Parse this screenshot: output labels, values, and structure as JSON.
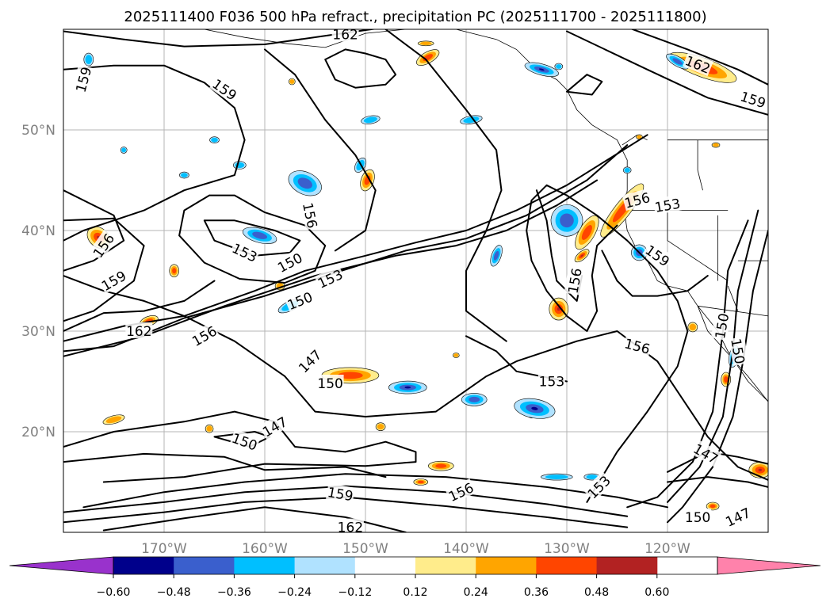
{
  "chart_data": {
    "type": "contour map",
    "title": "2025111400 F036 500 hPa refract., precipitation PC (2025111700 - 2025111800)",
    "map": {
      "lon_range": [
        -180,
        -110
      ],
      "lat_range": [
        10,
        60
      ],
      "lon_ticks": [
        -170,
        -160,
        -150,
        -140,
        -130,
        -120
      ],
      "lon_tick_labels": [
        "170°W",
        "160°W",
        "150°W",
        "140°W",
        "130°W",
        "120°W"
      ],
      "lat_ticks": [
        20,
        30,
        40,
        50
      ],
      "lat_tick_labels": [
        "20°N",
        "30°N",
        "40°N",
        "50°N"
      ],
      "grid": true
    },
    "colorbar": {
      "orientation": "horizontal",
      "extend": "both",
      "levels": [
        -0.72,
        -0.6,
        -0.48,
        -0.36,
        -0.24,
        -0.12,
        0.12,
        0.24,
        0.36,
        0.48,
        0.6,
        0.72
      ],
      "tick_values": [
        -0.6,
        -0.48,
        -0.36,
        -0.24,
        -0.12,
        0.12,
        0.24,
        0.36,
        0.48,
        0.6
      ],
      "tick_labels": [
        "−0.60",
        "−0.48",
        "−0.36",
        "−0.24",
        "−0.12",
        "0.12",
        "0.24",
        "0.36",
        "0.48",
        "0.60"
      ],
      "colors": [
        "#9932cc",
        "#00008b",
        "#3a5fcd",
        "#00bfff",
        "#b0e2ff",
        "#ffffff",
        "#ffec8b",
        "#ffa500",
        "#ff4500",
        "#b22222",
        "#ff82ab"
      ]
    },
    "contours": {
      "line_color": "#000000",
      "labels": [
        {
          "value": "162",
          "lon": -152.0,
          "lat": 59.5,
          "rot": 0
        },
        {
          "value": "162",
          "lon": -117.0,
          "lat": 56.5,
          "rot": 22
        },
        {
          "value": "159",
          "lon": -111.5,
          "lat": 53.0,
          "rot": 18
        },
        {
          "value": "159",
          "lon": -178.0,
          "lat": 55.0,
          "rot": -75
        },
        {
          "value": "159",
          "lon": -164.0,
          "lat": 54.0,
          "rot": 35
        },
        {
          "value": "156",
          "lon": -155.5,
          "lat": 41.5,
          "rot": 78
        },
        {
          "value": "156",
          "lon": -123.0,
          "lat": 43.0,
          "rot": -15
        },
        {
          "value": "153",
          "lon": -120.0,
          "lat": 42.5,
          "rot": -10
        },
        {
          "value": "156",
          "lon": -176.0,
          "lat": 38.5,
          "rot": -55
        },
        {
          "value": "153",
          "lon": -162.0,
          "lat": 37.8,
          "rot": 25
        },
        {
          "value": "150",
          "lon": -157.5,
          "lat": 36.8,
          "rot": -28
        },
        {
          "value": "153",
          "lon": -153.5,
          "lat": 35.2,
          "rot": -25
        },
        {
          "value": "159",
          "lon": -175.0,
          "lat": 35.0,
          "rot": -30
        },
        {
          "value": "159",
          "lon": -121.0,
          "lat": 37.5,
          "rot": 35
        },
        {
          "value": "156",
          "lon": -129.2,
          "lat": 35.0,
          "rot": -80
        },
        {
          "value": "150",
          "lon": -156.5,
          "lat": 33.0,
          "rot": -22
        },
        {
          "value": "162",
          "lon": -172.5,
          "lat": 30.0,
          "rot": 0
        },
        {
          "value": "156",
          "lon": -166.0,
          "lat": 29.5,
          "rot": -30
        },
        {
          "value": "150",
          "lon": -114.6,
          "lat": 30.5,
          "rot": -80
        },
        {
          "value": "156",
          "lon": -123.0,
          "lat": 28.5,
          "rot": 15
        },
        {
          "value": "150",
          "lon": -113.0,
          "lat": 28.0,
          "rot": 80
        },
        {
          "value": "147",
          "lon": -155.5,
          "lat": 27.0,
          "rot": -45
        },
        {
          "value": "153",
          "lon": -131.5,
          "lat": 25.0,
          "rot": 0
        },
        {
          "value": "150",
          "lon": -153.5,
          "lat": 24.8,
          "rot": 0
        },
        {
          "value": "147",
          "lon": -159.0,
          "lat": 20.5,
          "rot": -30
        },
        {
          "value": "150",
          "lon": -162.0,
          "lat": 19.0,
          "rot": 20
        },
        {
          "value": "147",
          "lon": -116.2,
          "lat": 17.8,
          "rot": 30
        },
        {
          "value": "153",
          "lon": -126.8,
          "lat": 14.5,
          "rot": -45
        },
        {
          "value": "159",
          "lon": -152.5,
          "lat": 13.8,
          "rot": 10
        },
        {
          "value": "156",
          "lon": -140.5,
          "lat": 14.0,
          "rot": -25
        },
        {
          "value": "150",
          "lon": -117.0,
          "lat": 11.5,
          "rot": 0
        },
        {
          "value": "147",
          "lon": -113.0,
          "lat": 11.5,
          "rot": -25
        },
        {
          "value": "162",
          "lon": -151.5,
          "lat": 10.5,
          "rot": 0
        }
      ]
    }
  }
}
